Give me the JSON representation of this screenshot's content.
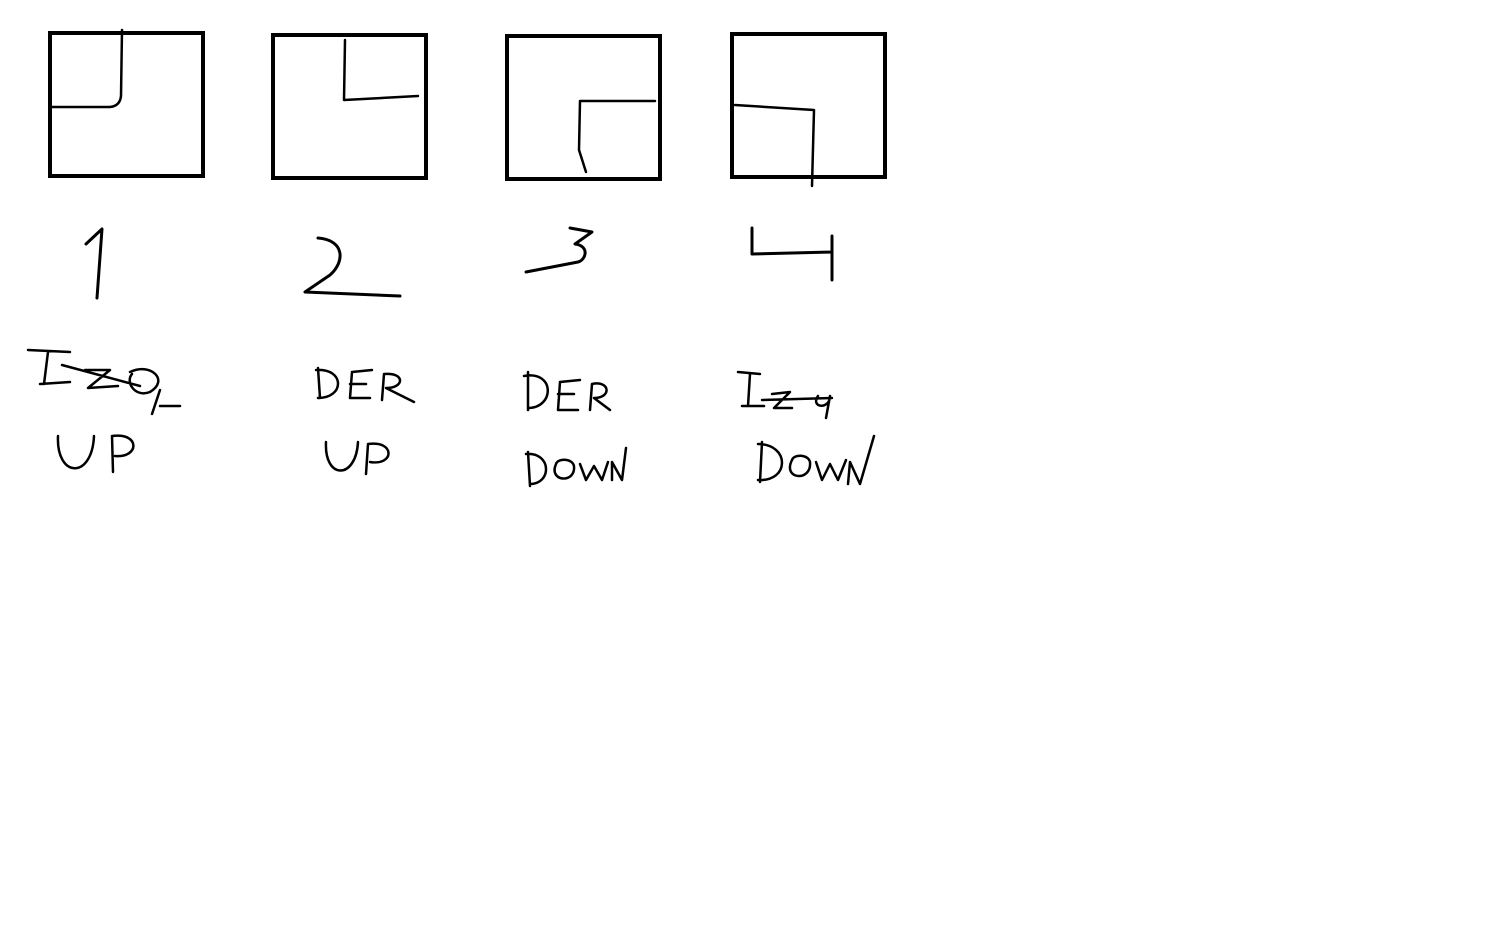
{
  "diagram": {
    "panels": [
      {
        "number": "1",
        "side": "IZQ",
        "direction": "UP"
      },
      {
        "number": "2",
        "side": "DER",
        "direction": "UP"
      },
      {
        "number": "3",
        "side": "DER",
        "direction": "DOWN"
      },
      {
        "number": "4",
        "side": "IZQ",
        "direction": "DOWN"
      }
    ]
  }
}
